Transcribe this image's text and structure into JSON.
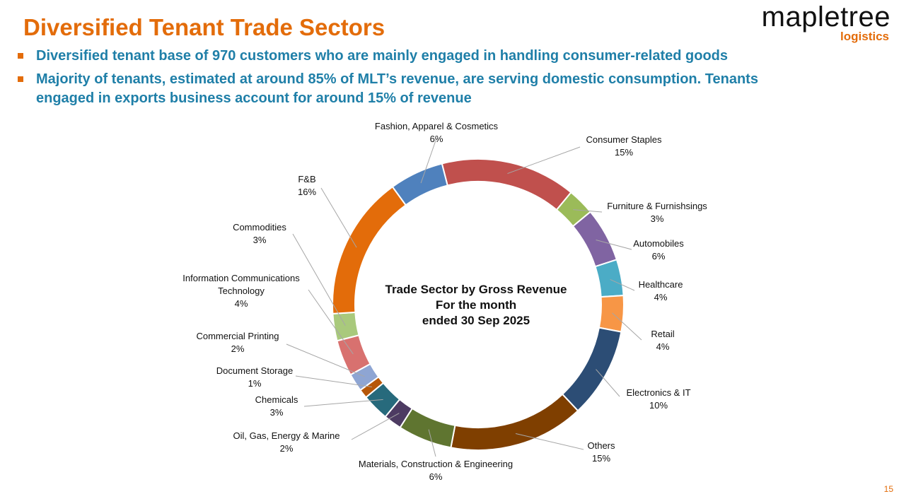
{
  "header": {
    "title": "Diversified Tenant Trade Sectors",
    "logo_main": "mapletree",
    "logo_sub": "logistics"
  },
  "bullets": [
    "Diversified tenant base of 970 customers who are mainly engaged in handling consumer-related goods",
    "Majority of tenants, estimated at around 85% of MLT’s revenue, are serving domestic consumption. Tenants engaged in exports business account for around 15% of revenue"
  ],
  "page_number": "15",
  "colors": {
    "title": "#E36C0A",
    "bullet_text": "#1F7FA8",
    "bullet_square": "#E36C0A"
  },
  "chart_data": {
    "type": "pie",
    "donut": true,
    "center_text": [
      "Trade Sector by Gross Revenue",
      "For the month",
      "ended 30 Sep 2025"
    ],
    "slices": [
      {
        "label": "Consumer Staples",
        "value_label": "15%",
        "value": 15,
        "color": "#C0504D"
      },
      {
        "label": "Furniture & Furnishsings",
        "value_label": "3%",
        "value": 3,
        "color": "#9BBB59"
      },
      {
        "label": "Automobiles",
        "value_label": "6%",
        "value": 6,
        "color": "#8064A2"
      },
      {
        "label": "Healthcare",
        "value_label": "4%",
        "value": 4,
        "color": "#4BACC6"
      },
      {
        "label": "Retail",
        "value_label": "4%",
        "value": 4,
        "color": "#F79646"
      },
      {
        "label": "Electronics & IT",
        "value_label": "10%",
        "value": 10,
        "color": "#2C4D75"
      },
      {
        "label": "Others",
        "value_label": "15%",
        "value": 15,
        "color": "#7F3F00"
      },
      {
        "label": "Materials, Construction & Engineering",
        "value_label": "6%",
        "value": 6,
        "color": "#5F7530"
      },
      {
        "label": "Oil, Gas, Energy & Marine",
        "value_label": "2%",
        "value": 2,
        "color": "#4D3B62"
      },
      {
        "label": "Chemicals",
        "value_label": "3%",
        "value": 3,
        "color": "#276A7C"
      },
      {
        "label": "Document Storage",
        "value_label": "1%",
        "value": 1,
        "color": "#B65708"
      },
      {
        "label": "Commercial Printing",
        "value_label": "2%",
        "value": 2,
        "color": "#8EA5D3"
      },
      {
        "label": "Information Communications Technology",
        "value_label": "4%",
        "value": 4,
        "color": "#D8716F"
      },
      {
        "label": "Commodities",
        "value_label": "3%",
        "value": 3,
        "color": "#A9C97C"
      },
      {
        "label": "F&B",
        "value_label": "16%",
        "value": 16,
        "color": "#E36C0A"
      },
      {
        "label": "Fashion, Apparel & Cosmetics",
        "value_label": "6%",
        "value": 6,
        "color": "#4F81BD"
      }
    ]
  }
}
